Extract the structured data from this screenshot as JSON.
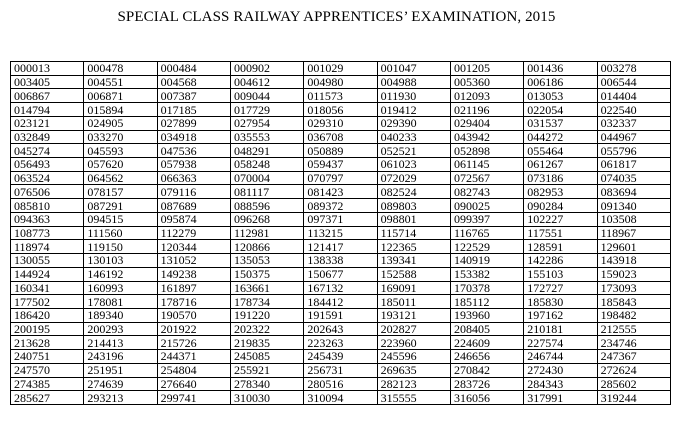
{
  "title": "SPECIAL CLASS RAILWAY APPRENTICES’ EXAMINATION, 2015",
  "rows": [
    [
      "000013",
      "000478",
      "000484",
      "000902",
      "001029",
      "001047",
      "001205",
      "001436",
      "003278"
    ],
    [
      "003405",
      "004551",
      "004568",
      "004612",
      "004980",
      "004988",
      "005360",
      "006186",
      "006544"
    ],
    [
      "006867",
      "006871",
      "007387",
      "009044",
      "011573",
      "011930",
      "012093",
      "013053",
      "014404"
    ],
    [
      "014794",
      "015894",
      "017185",
      "017729",
      "018056",
      "019412",
      "021196",
      "022054",
      "022540"
    ],
    [
      "023121",
      "024905",
      "027899",
      "027954",
      "029310",
      "029390",
      "029404",
      "031537",
      "032337"
    ],
    [
      "032849",
      "033270",
      "034918",
      "035553",
      "036708",
      "040233",
      "043942",
      "044272",
      "044967"
    ],
    [
      "045274",
      "045593",
      "047536",
      "048291",
      "050889",
      "052521",
      "052898",
      "055464",
      "055796"
    ],
    [
      "056493",
      "057620",
      "057938",
      "058248",
      "059437",
      "061023",
      "061145",
      "061267",
      "061817"
    ],
    [
      "063524",
      "064562",
      "066363",
      "070004",
      "070797",
      "072029",
      "072567",
      "073186",
      "074035"
    ],
    [
      "076506",
      "078157",
      "079116",
      "081117",
      "081423",
      "082524",
      "082743",
      "082953",
      "083694"
    ],
    [
      "085810",
      "087291",
      "087689",
      "088596",
      "089372",
      "089803",
      "090025",
      "090284",
      "091340"
    ],
    [
      "094363",
      "094515",
      "095874",
      "096268",
      "097371",
      "098801",
      "099397",
      "102227",
      "103508"
    ],
    [
      "108773",
      "111560",
      "112279",
      "112981",
      "113215",
      "115714",
      "116765",
      "117551",
      "118967"
    ],
    [
      "118974",
      "119150",
      "120344",
      "120866",
      "121417",
      "122365",
      "122529",
      "128591",
      "129601"
    ],
    [
      "130055",
      "130103",
      "131052",
      "135053",
      "138338",
      "139341",
      "140919",
      "142286",
      "143918"
    ],
    [
      "144924",
      "146192",
      "149238",
      "150375",
      "150677",
      "152588",
      "153382",
      "155103",
      "159023"
    ],
    [
      "160341",
      "160993",
      "161897",
      "163661",
      "167132",
      "169091",
      "170378",
      "172727",
      "173093"
    ],
    [
      "177502",
      "178081",
      "178716",
      "178734",
      "184412",
      "185011",
      "185112",
      "185830",
      "185843"
    ],
    [
      "186420",
      "189340",
      "190570",
      "191220",
      "191591",
      "193121",
      "193960",
      "197162",
      "198482"
    ],
    [
      "200195",
      "200293",
      "201922",
      "202322",
      "202643",
      "202827",
      "208405",
      "210181",
      "212555"
    ],
    [
      "213628",
      "214413",
      "215726",
      "219835",
      "223263",
      "223960",
      "224609",
      "227574",
      "234746"
    ],
    [
      "240751",
      "243196",
      "244371",
      "245085",
      "245439",
      "245596",
      "246656",
      "246744",
      "247367"
    ],
    [
      "247570",
      "251951",
      "254804",
      "255921",
      "256731",
      "269635",
      "270842",
      "272430",
      "272624"
    ],
    [
      "274385",
      "274639",
      "276640",
      "278340",
      "280516",
      "282123",
      "283726",
      "284343",
      "285602"
    ],
    [
      "285627",
      "293213",
      "299741",
      "310030",
      "310094",
      "315555",
      "316056",
      "317991",
      "319244"
    ]
  ]
}
